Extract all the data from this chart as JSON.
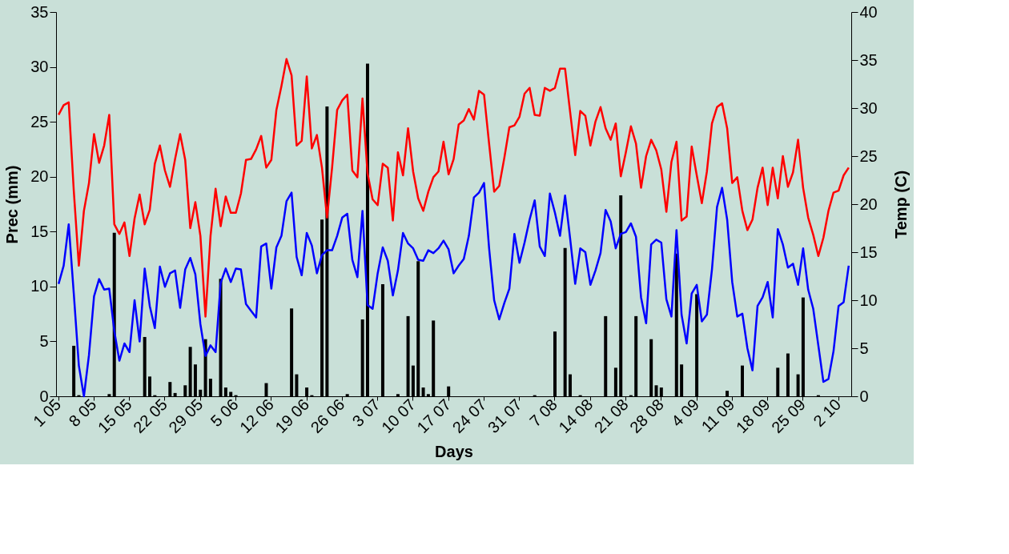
{
  "chart_data": {
    "type": "bar",
    "xlabel": "Days",
    "ylabel": "Prec (mm)",
    "y2label": "Temp (C)",
    "categories": [
      "1 05",
      null,
      null,
      null,
      null,
      null,
      null,
      "8 05",
      null,
      null,
      null,
      null,
      null,
      null,
      "15 05",
      null,
      null,
      null,
      null,
      null,
      null,
      "22 05",
      null,
      null,
      null,
      null,
      null,
      null,
      "29 05",
      null,
      null,
      null,
      null,
      null,
      null,
      "5 06",
      null,
      null,
      null,
      null,
      null,
      null,
      "12 06",
      null,
      null,
      null,
      null,
      null,
      null,
      "19 06",
      null,
      null,
      null,
      null,
      null,
      null,
      "26 06",
      null,
      null,
      null,
      null,
      null,
      null,
      "3 07",
      null,
      null,
      null,
      null,
      null,
      null,
      "10 07",
      null,
      null,
      null,
      null,
      null,
      null,
      "17 07",
      null,
      null,
      null,
      null,
      null,
      null,
      "24 07",
      null,
      null,
      null,
      null,
      null,
      null,
      "31 07",
      null,
      null,
      null,
      null,
      null,
      null,
      "7 08",
      null,
      null,
      null,
      null,
      null,
      null,
      "14 08",
      null,
      null,
      null,
      null,
      null,
      null,
      "21 08",
      null,
      null,
      null,
      null,
      null,
      null,
      "28 08",
      null,
      null,
      null,
      null,
      null,
      null,
      "4 09",
      null,
      null,
      null,
      null,
      null,
      null,
      "11 09",
      null,
      null,
      null,
      null,
      null,
      null,
      "18 09",
      null,
      null,
      null,
      null,
      null,
      null,
      "25 09",
      null,
      null,
      null,
      null,
      null,
      null,
      "2 10",
      null,
      null
    ],
    "ylim": [
      0,
      35
    ],
    "yticks": [
      0,
      5,
      10,
      15,
      20,
      25,
      30,
      35
    ],
    "y2lim": [
      0,
      40
    ],
    "y2ticks": [
      0,
      5,
      10,
      15,
      20,
      25,
      30,
      35,
      40
    ],
    "series": [
      {
        "color": "#000000",
        "values": [
          null,
          null,
          null,
          4.6,
          0.1,
          null,
          null,
          null,
          null,
          null,
          0.2,
          14.9,
          null,
          null,
          null,
          null,
          null,
          5.4,
          1.8,
          0.1,
          null,
          null,
          1.3,
          0.3,
          null,
          1.0,
          4.5,
          2.9,
          0.6,
          5.2,
          1.6,
          null,
          10.7,
          0.8,
          0.4,
          0.1,
          null,
          null,
          null,
          null,
          null,
          1.2,
          null,
          null,
          null,
          null,
          8.0,
          2.0,
          null,
          0.8,
          0.1,
          null,
          16.1,
          26.4,
          null,
          null,
          null,
          0.2,
          null,
          null,
          7.0,
          30.3,
          null,
          null,
          10.2,
          null,
          null,
          0.2,
          null,
          7.3,
          2.8,
          12.3,
          0.8,
          0.2,
          6.9,
          null,
          null,
          0.9,
          null,
          null,
          null,
          null,
          null,
          null,
          null,
          null,
          null,
          null,
          null,
          null,
          null,
          null,
          null,
          null,
          0.1,
          null,
          null,
          null,
          5.9,
          null,
          13.5,
          2.0,
          null,
          0.1,
          null,
          null,
          null,
          null,
          7.3,
          null,
          2.6,
          18.3,
          null,
          0.1,
          7.3,
          null,
          null,
          5.2,
          1.0,
          0.8,
          null,
          null,
          13.0,
          2.9,
          null,
          null,
          9.3,
          null,
          null,
          null,
          null,
          null,
          0.5,
          null,
          null,
          2.8,
          null,
          null,
          null,
          null,
          null,
          null,
          2.6,
          null,
          3.9,
          null,
          2.0,
          9.0,
          null,
          null,
          0.1,
          null,
          null,
          null,
          null,
          null,
          null
        ]
      },
      {
        "type": "line",
        "axis": "y2",
        "color": "#ff0000",
        "values": [
          29.3,
          30.3,
          30.6,
          21.4,
          13.6,
          19.3,
          22.2,
          27.3,
          24.3,
          26.1,
          29.3,
          17.9,
          16.9,
          18.1,
          14.6,
          18.5,
          21.0,
          17.9,
          19.4,
          24.2,
          26.1,
          23.5,
          21.8,
          24.7,
          27.3,
          24.6,
          17.5,
          20.2,
          16.7,
          8.3,
          16.7,
          21.6,
          17.7,
          20.8,
          19.1,
          19.1,
          21.1,
          24.6,
          24.7,
          25.7,
          27.1,
          23.8,
          24.6,
          29.8,
          32.3,
          35.1,
          33.4,
          26.1,
          26.6,
          33.3,
          25.8,
          27.2,
          23.8,
          18.6,
          23.8,
          29.8,
          30.8,
          31.4,
          23.5,
          22.8,
          31.0,
          23.2,
          20.5,
          19.9,
          24.2,
          23.8,
          18.3,
          25.4,
          23.0,
          27.9,
          23.4,
          20.6,
          19.3,
          21.3,
          22.8,
          23.4,
          26.5,
          23.1,
          24.7,
          28.3,
          28.7,
          29.9,
          28.8,
          31.8,
          31.4,
          26.3,
          21.3,
          21.9,
          24.8,
          28.0,
          28.2,
          29.1,
          31.5,
          32.1,
          29.3,
          29.2,
          32.1,
          31.8,
          32.1,
          34.1,
          34.1,
          29.6,
          25.1,
          29.7,
          29.2,
          26.1,
          28.6,
          30.1,
          27.9,
          26.7,
          28.4,
          22.9,
          25.4,
          28.1,
          26.3,
          21.7,
          25.0,
          26.7,
          25.6,
          23.6,
          19.2,
          24.4,
          26.5,
          18.3,
          18.7,
          26.0,
          23.0,
          20.1,
          23.4,
          28.4,
          30.1,
          30.5,
          27.9,
          22.2,
          22.8,
          19.3,
          17.3,
          18.4,
          21.7,
          23.8,
          19.9,
          23.8,
          20.6,
          25.0,
          21.8,
          23.3,
          26.7,
          21.7,
          18.6,
          16.8,
          14.6,
          16.5,
          19.3,
          21.2,
          21.4,
          23.0,
          23.8
        ]
      },
      {
        "type": "line",
        "axis": "y2",
        "color": "#0000ff",
        "values": [
          11.7,
          13.6,
          17.9,
          10.7,
          3.2,
          0.0,
          4.3,
          10.4,
          12.2,
          11.1,
          11.2,
          6.8,
          3.7,
          5.5,
          4.6,
          10.0,
          5.7,
          13.3,
          9.4,
          7.1,
          13.5,
          11.4,
          12.8,
          13.1,
          9.2,
          13.2,
          14.4,
          12.7,
          7.5,
          4.2,
          5.3,
          4.6,
          11.8,
          13.3,
          11.9,
          13.3,
          13.2,
          9.6,
          8.9,
          8.2,
          15.6,
          15.9,
          11.2,
          15.5,
          16.7,
          20.3,
          21.2,
          14.5,
          12.6,
          17.0,
          15.7,
          12.8,
          14.7,
          15.2,
          15.2,
          16.7,
          18.6,
          19.0,
          14.2,
          12.4,
          19.3,
          9.5,
          9.1,
          12.8,
          15.5,
          14.1,
          10.5,
          13.1,
          17.0,
          15.9,
          15.4,
          14.2,
          14.1,
          15.2,
          14.9,
          15.4,
          16.2,
          15.3,
          12.8,
          13.6,
          14.3,
          16.7,
          20.7,
          21.2,
          22.2,
          15.4,
          10.0,
          8.0,
          9.7,
          11.2,
          16.9,
          13.9,
          16.0,
          18.4,
          20.4,
          15.6,
          14.6,
          21.1,
          19.1,
          16.7,
          20.9,
          16.4,
          11.7,
          15.4,
          15.0,
          11.6,
          13.1,
          14.9,
          19.4,
          18.2,
          15.4,
          16.9,
          17.1,
          18.0,
          16.6,
          10.3,
          7.6,
          15.8,
          16.3,
          16.0,
          10.1,
          8.3,
          17.3,
          8.5,
          5.5,
          10.7,
          11.6,
          7.8,
          8.5,
          13.2,
          19.7,
          21.7,
          18.4,
          11.9,
          8.3,
          8.6,
          5.0,
          2.7,
          9.4,
          10.3,
          11.9,
          8.2,
          17.4,
          15.8,
          13.4,
          13.8,
          11.6,
          15.4,
          11.1,
          9.1,
          5.3,
          1.5,
          1.8,
          4.7,
          9.4,
          9.8,
          13.6
        ]
      }
    ]
  }
}
